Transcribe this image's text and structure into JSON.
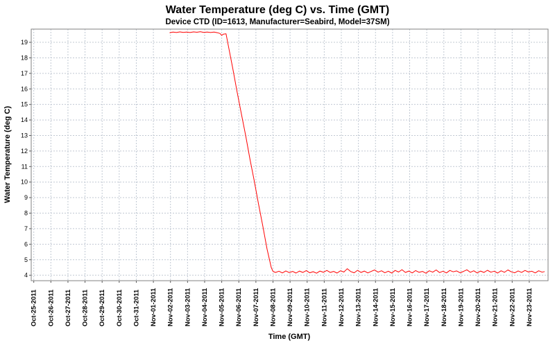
{
  "style": {
    "background": "#ffffff",
    "grid_color": "#c0c8d2",
    "border_color": "#808080",
    "tick_color": "#555555",
    "text_color": "#000000"
  },
  "chart_data": {
    "type": "line",
    "title": "Water Temperature (deg C) vs. Time (GMT)",
    "subtitle": "Device CTD (ID=1613, Manufacturer=Seabird, Model=37SM)",
    "xlabel": "Time (GMT)",
    "ylabel": "Water Temperature (deg C)",
    "grid": true,
    "legend": "none",
    "xlim": [
      -0.15,
      30.1
    ],
    "ylim": [
      3.65,
      19.85
    ],
    "y_ticks": [
      4,
      5,
      6,
      7,
      8,
      9,
      10,
      11,
      12,
      13,
      14,
      15,
      16,
      17,
      18,
      19
    ],
    "x_tick_labels": [
      "Oct-25-2011",
      "Oct-26-2011",
      "Oct-27-2011",
      "Oct-28-2011",
      "Oct-29-2011",
      "Oct-30-2011",
      "Oct-31-2011",
      "Nov-01-2011",
      "Nov-02-2011",
      "Nov-03-2011",
      "Nov-04-2011",
      "Nov-05-2011",
      "Nov-06-2011",
      "Nov-07-2011",
      "Nov-08-2011",
      "Nov-09-2011",
      "Nov-10-2011",
      "Nov-11-2011",
      "Nov-12-2011",
      "Nov-13-2011",
      "Nov-14-2011",
      "Nov-15-2011",
      "Nov-16-2011",
      "Nov-17-2011",
      "Nov-18-2011",
      "Nov-19-2011",
      "Nov-20-2011",
      "Nov-21-2011",
      "Nov-22-2011",
      "Nov-23-2011"
    ],
    "series": [
      {
        "name": "Water Temperature",
        "color": "#ff0000",
        "points": [
          [
            7.95,
            19.62
          ],
          [
            8.15,
            19.66
          ],
          [
            8.35,
            19.63
          ],
          [
            8.55,
            19.67
          ],
          [
            8.75,
            19.64
          ],
          [
            8.95,
            19.66
          ],
          [
            9.15,
            19.63
          ],
          [
            9.35,
            19.67
          ],
          [
            9.55,
            19.65
          ],
          [
            9.75,
            19.68
          ],
          [
            9.95,
            19.64
          ],
          [
            10.15,
            19.66
          ],
          [
            10.35,
            19.63
          ],
          [
            10.55,
            19.66
          ],
          [
            10.75,
            19.62
          ],
          [
            10.9,
            19.57
          ],
          [
            11.0,
            19.45
          ],
          [
            11.1,
            19.53
          ],
          [
            11.25,
            19.55
          ],
          [
            11.4,
            18.7
          ],
          [
            11.65,
            17.3
          ],
          [
            11.9,
            15.8
          ],
          [
            12.15,
            14.4
          ],
          [
            12.4,
            13.0
          ],
          [
            12.65,
            11.5
          ],
          [
            12.9,
            10.1
          ],
          [
            13.15,
            8.6
          ],
          [
            13.4,
            7.2
          ],
          [
            13.65,
            5.7
          ],
          [
            13.9,
            4.5
          ],
          [
            14.0,
            4.25
          ],
          [
            14.15,
            4.18
          ],
          [
            14.35,
            4.26
          ],
          [
            14.55,
            4.15
          ],
          [
            14.75,
            4.28
          ],
          [
            14.95,
            4.17
          ],
          [
            15.15,
            4.25
          ],
          [
            15.35,
            4.14
          ],
          [
            15.55,
            4.27
          ],
          [
            15.75,
            4.18
          ],
          [
            15.95,
            4.3
          ],
          [
            16.15,
            4.16
          ],
          [
            16.35,
            4.23
          ],
          [
            16.55,
            4.13
          ],
          [
            16.75,
            4.27
          ],
          [
            16.95,
            4.19
          ],
          [
            17.15,
            4.31
          ],
          [
            17.35,
            4.18
          ],
          [
            17.55,
            4.25
          ],
          [
            17.75,
            4.14
          ],
          [
            17.95,
            4.29
          ],
          [
            18.15,
            4.21
          ],
          [
            18.35,
            4.42
          ],
          [
            18.55,
            4.24
          ],
          [
            18.75,
            4.16
          ],
          [
            18.95,
            4.32
          ],
          [
            19.15,
            4.18
          ],
          [
            19.35,
            4.27
          ],
          [
            19.55,
            4.15
          ],
          [
            19.75,
            4.25
          ],
          [
            19.95,
            4.34
          ],
          [
            20.15,
            4.2
          ],
          [
            20.35,
            4.29
          ],
          [
            20.55,
            4.16
          ],
          [
            20.75,
            4.26
          ],
          [
            20.95,
            4.14
          ],
          [
            21.15,
            4.31
          ],
          [
            21.35,
            4.21
          ],
          [
            21.55,
            4.36
          ],
          [
            21.75,
            4.18
          ],
          [
            21.95,
            4.27
          ],
          [
            22.15,
            4.15
          ],
          [
            22.35,
            4.3
          ],
          [
            22.55,
            4.19
          ],
          [
            22.75,
            4.25
          ],
          [
            22.95,
            4.13
          ],
          [
            23.15,
            4.29
          ],
          [
            23.35,
            4.2
          ],
          [
            23.55,
            4.34
          ],
          [
            23.75,
            4.17
          ],
          [
            23.95,
            4.26
          ],
          [
            24.15,
            4.15
          ],
          [
            24.35,
            4.31
          ],
          [
            24.55,
            4.22
          ],
          [
            24.75,
            4.28
          ],
          [
            24.95,
            4.16
          ],
          [
            25.15,
            4.25
          ],
          [
            25.35,
            4.35
          ],
          [
            25.55,
            4.19
          ],
          [
            25.75,
            4.29
          ],
          [
            25.95,
            4.15
          ],
          [
            26.15,
            4.27
          ],
          [
            26.35,
            4.18
          ],
          [
            26.55,
            4.32
          ],
          [
            26.75,
            4.2
          ],
          [
            26.95,
            4.26
          ],
          [
            27.15,
            4.14
          ],
          [
            27.35,
            4.29
          ],
          [
            27.55,
            4.19
          ],
          [
            27.75,
            4.34
          ],
          [
            27.95,
            4.22
          ],
          [
            28.15,
            4.16
          ],
          [
            28.35,
            4.28
          ],
          [
            28.55,
            4.18
          ],
          [
            28.75,
            4.31
          ],
          [
            28.95,
            4.21
          ],
          [
            29.15,
            4.26
          ],
          [
            29.35,
            4.15
          ],
          [
            29.55,
            4.29
          ],
          [
            29.75,
            4.2
          ],
          [
            29.9,
            4.24
          ]
        ]
      }
    ]
  }
}
